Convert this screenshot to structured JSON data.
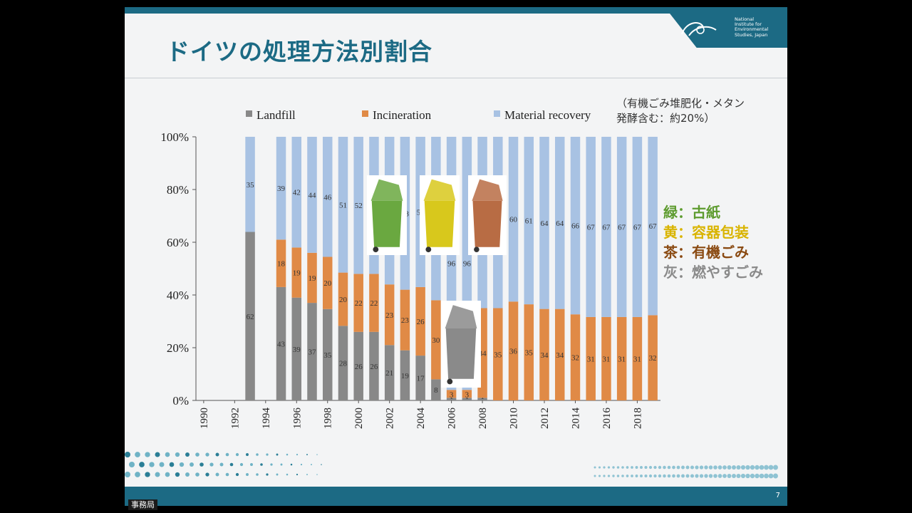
{
  "slide": {
    "title": "ドイツの処理方法別割合",
    "page_number": "7",
    "logo_text": [
      "National",
      "Institute for",
      "Environmental",
      "Studies, Japan"
    ],
    "note_line1": "（有機ごみ堆肥化・メタン",
    "note_line2": "発酵含む：約20%）",
    "office_label": "事務局",
    "bins": [
      {
        "name": "green-bin-icon",
        "color": "#6aa840"
      },
      {
        "name": "yellow-bin-icon",
        "color": "#d8c81c"
      },
      {
        "name": "brown-bin-icon",
        "color": "#b86c44"
      },
      {
        "name": "gray-bin-icon",
        "color": "#8a8a8a"
      }
    ],
    "bin_legend": [
      {
        "text": "緑：古紙",
        "color": "#5d9b2e"
      },
      {
        "text": "黄：容器包装",
        "color": "#d9b400"
      },
      {
        "text": "茶：有機ごみ",
        "color": "#8a4a12"
      },
      {
        "text": "灰：燃やすごみ",
        "color": "#8a8a8a"
      }
    ]
  },
  "chart_data": {
    "type": "bar",
    "stacked": true,
    "x": [
      1990,
      1991,
      1992,
      1993,
      1994,
      1995,
      1996,
      1997,
      1998,
      1999,
      2000,
      2001,
      2002,
      2003,
      2004,
      2005,
      2006,
      2007,
      2008,
      2009,
      2010,
      2011,
      2012,
      2013,
      2014,
      2015,
      2016,
      2017,
      2018,
      2019
    ],
    "x_tick_labels": [
      "1990",
      "1992",
      "1994",
      "1996",
      "1998",
      "2000",
      "2002",
      "2004",
      "2006",
      "2008",
      "2010",
      "2012",
      "2014",
      "2016",
      "2018"
    ],
    "y_tick_labels": [
      "0%",
      "20%",
      "40%",
      "60%",
      "80%",
      "100%"
    ],
    "ylim": [
      0,
      100
    ],
    "legend_position": "top",
    "series": [
      {
        "name": "Landfill",
        "color": "#888888",
        "values": [
          null,
          null,
          null,
          62,
          null,
          43,
          39,
          37,
          35,
          28,
          26,
          26,
          21,
          19,
          17,
          8,
          1,
          1,
          1,
          0,
          0,
          0,
          0,
          0,
          0,
          0,
          0,
          0,
          0,
          0
        ]
      },
      {
        "name": "Incineration",
        "color": "#e08a46",
        "values": [
          null,
          null,
          null,
          0,
          null,
          18,
          19,
          19,
          20,
          20,
          22,
          22,
          23,
          23,
          26,
          30,
          3,
          3,
          34,
          35,
          36,
          35,
          34,
          34,
          32,
          31,
          31,
          31,
          31,
          32
        ]
      },
      {
        "name": "Material recovery",
        "color": "#a8c2e3",
        "values": [
          null,
          null,
          null,
          35,
          null,
          39,
          42,
          44,
          46,
          51,
          52,
          52,
          56,
          58,
          57,
          62,
          96,
          96,
          65,
          65,
          60,
          61,
          64,
          64,
          66,
          67,
          67,
          67,
          67,
          67
        ]
      }
    ]
  }
}
